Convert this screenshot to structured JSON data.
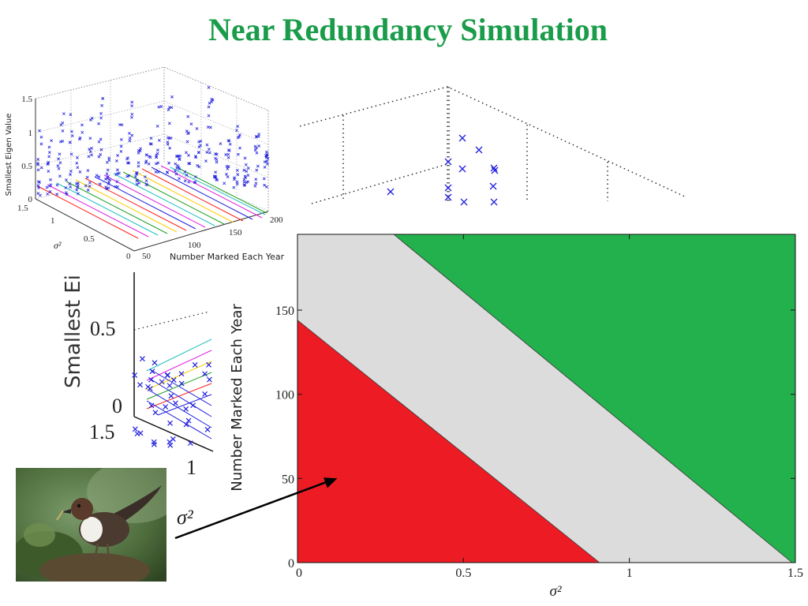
{
  "title": "Near Redundancy Simulation",
  "colors": {
    "title": "#1a9c4a",
    "red": "#ed1c24",
    "grey": "#dcdcdc",
    "green": "#22b14c",
    "marker": "#2020dd"
  },
  "plot3d": {
    "zlabel": "Smallest Eigen Value",
    "ylabel": "σ²",
    "xlabel": "Number Marked Each Year",
    "z_ticks": [
      "0",
      "0.5",
      "1",
      "1.5"
    ],
    "y_ticks": [
      "1.5",
      "1",
      "0.5",
      "0"
    ],
    "x_ticks": [
      "50",
      "100",
      "150",
      "200"
    ]
  },
  "zoom": {
    "ylabel": "Smallest Ei",
    "tick_top": "0.5",
    "tick_zero": "0",
    "ytick": "1.5",
    "xtick": "1",
    "sigma": "σ²"
  },
  "region_chart": {
    "ylabel": "Number Marked Each Year",
    "xlabel": "σ²",
    "x_ticks": [
      "0",
      "0.5",
      "1",
      "1.5"
    ],
    "y_ticks": [
      "0",
      "50",
      "100",
      "150"
    ]
  },
  "chart_data": {
    "type": "area",
    "title": "",
    "xlabel": "σ²",
    "ylabel": "Number Marked Each Year",
    "xlim": [
      0,
      1.5
    ],
    "ylim": [
      0,
      195
    ],
    "grid": false,
    "regions": [
      {
        "color": "red",
        "polygon": [
          [
            0,
            0
          ],
          [
            0,
            144
          ],
          [
            0.91,
            0
          ]
        ]
      },
      {
        "color": "grey",
        "polygon": [
          [
            0,
            144
          ],
          [
            0,
            195
          ],
          [
            0.29,
            195
          ],
          [
            1.49,
            0
          ],
          [
            0.91,
            0
          ]
        ]
      },
      {
        "color": "green",
        "polygon": [
          [
            0.29,
            195
          ],
          [
            1.5,
            195
          ],
          [
            1.5,
            0
          ],
          [
            1.49,
            0
          ]
        ]
      }
    ],
    "boundaries": [
      {
        "x": [
          0,
          0.91
        ],
        "y": [
          144,
          0
        ]
      },
      {
        "x": [
          0.29,
          1.49
        ],
        "y": [
          195,
          0
        ]
      }
    ],
    "arrow_to": [
      0.12,
      50
    ]
  }
}
